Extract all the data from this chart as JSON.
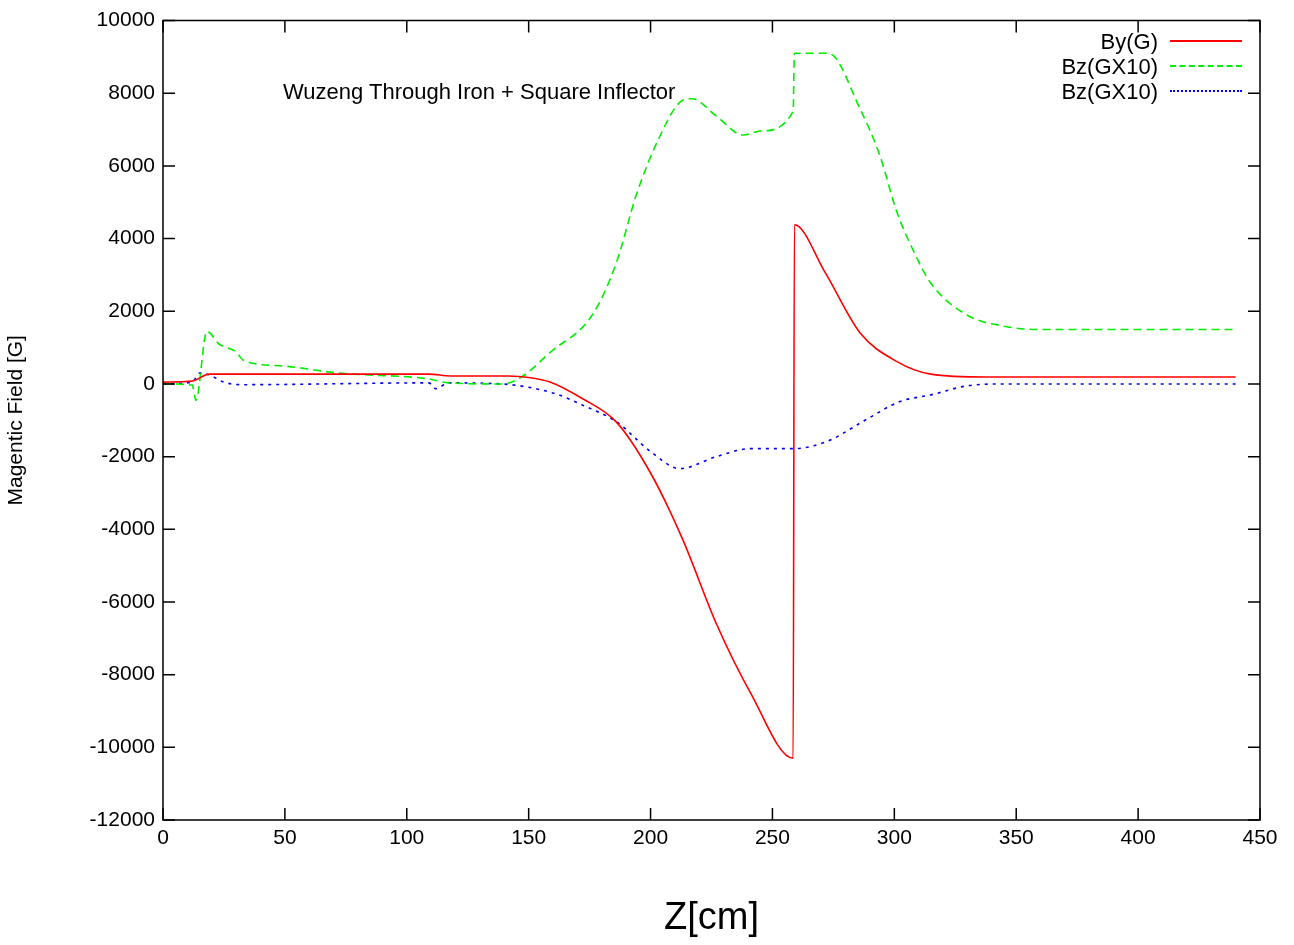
{
  "chart_data": {
    "type": "line",
    "xlabel": "Z[cm]",
    "ylabel": "Magentic Field [G]",
    "annotations": [
      "Wuzeng Through Iron + Square Inflector"
    ],
    "xlim": [
      0,
      450
    ],
    "xticks": [
      0,
      50,
      100,
      150,
      200,
      250,
      300,
      350,
      400,
      450
    ],
    "ylim": [
      -12000,
      10000
    ],
    "yticks": [
      -12000,
      -10000,
      -8000,
      -6000,
      -4000,
      -2000,
      0,
      2000,
      4000,
      6000,
      8000,
      10000
    ],
    "grid": false,
    "legend": "top right",
    "marker": "none",
    "series": [
      {
        "name": "By(G)",
        "color": "#ff0000",
        "line_style": "solid",
        "x": [
          0,
          12,
          19,
          60,
          109,
          118,
          140,
          150,
          159,
          172,
          186,
          200,
          213,
          227,
          241,
          258.5,
          259,
          271.6,
          286,
          300.7,
          315,
          337.6,
          380,
          440
        ],
        "values": [
          50,
          80,
          270,
          270,
          270,
          220,
          220,
          180,
          50,
          -400,
          -1050,
          -2450,
          -4250,
          -6600,
          -8500,
          -10300,
          4380,
          3070,
          1400,
          630,
          270,
          190,
          190,
          190
        ]
      },
      {
        "name": "Bz(GX10)",
        "color": "#00ee00",
        "line_style": "dashed",
        "x": [
          0,
          12,
          13.5,
          18,
          23,
          30,
          33,
          50,
          72,
          109,
          117,
          139,
          147,
          159,
          176,
          186,
          194,
          203,
          213,
          217,
          227,
          238,
          245,
          258.5,
          259,
          273,
          286,
          294,
          301,
          308,
          315,
          330,
          345,
          359,
          400,
          440
        ],
        "values": [
          0,
          -30,
          -450,
          1450,
          1100,
          880,
          650,
          490,
          300,
          140,
          30,
          0,
          190,
          880,
          1890,
          3340,
          5170,
          6700,
          7800,
          7850,
          7370,
          6850,
          6960,
          7500,
          9100,
          9100,
          7560,
          6300,
          4740,
          3640,
          2770,
          1890,
          1590,
          1500,
          1500,
          1500
        ]
      },
      {
        "name": "Bz(GX10)",
        "color": "#0000ee",
        "line_style": "dotted",
        "x": [
          0,
          12,
          15,
          19,
          25,
          32,
          109,
          112,
          117,
          139,
          161,
          172,
          186,
          200,
          212,
          227,
          241,
          258.5,
          272,
          289,
          302,
          315,
          330,
          345,
          400,
          440
        ],
        "values": [
          0,
          50,
          300,
          250,
          50,
          -20,
          30,
          -130,
          30,
          0,
          -270,
          -580,
          -1040,
          -1860,
          -2330,
          -2000,
          -1780,
          -1780,
          -1590,
          -960,
          -490,
          -300,
          -50,
          0,
          0,
          0
        ]
      }
    ]
  }
}
